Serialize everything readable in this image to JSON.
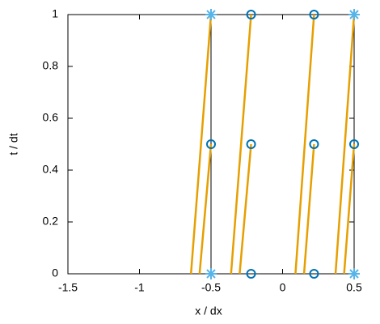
{
  "chart_data": {
    "type": "line",
    "xlabel": "x / dx",
    "ylabel": "t / dt",
    "xlim": [
      -1.5,
      0.5
    ],
    "ylim": [
      0,
      1
    ],
    "xticks": [
      -1.5,
      -1,
      -0.5,
      0,
      0.5
    ],
    "yticks": [
      0,
      0.2,
      0.4,
      0.6,
      0.8,
      1
    ],
    "grid": false,
    "series": [
      {
        "color": "#000000",
        "x": [
          -0.5,
          -0.5
        ],
        "values": [
          0,
          1
        ]
      },
      {
        "color": "#e69f00",
        "x": [
          -0.64,
          -0.5,
          null,
          -0.58,
          -0.5,
          null,
          -0.36,
          -0.22,
          null,
          -0.3,
          -0.22,
          null,
          0.09,
          0.22,
          null,
          0.15,
          0.22,
          null,
          0.37,
          0.5,
          null,
          0.43,
          0.5
        ],
        "values": [
          0,
          1,
          null,
          0,
          0.5,
          null,
          0,
          1,
          null,
          0,
          0.5,
          null,
          0,
          1,
          null,
          0,
          0.5,
          null,
          0,
          1,
          null,
          0,
          0.5
        ]
      },
      {
        "color": "#0072b2",
        "marker": "circle",
        "x": [
          -0.22,
          -0.22,
          -0.22,
          0.22,
          0.22,
          0.22,
          -0.5,
          0.5
        ],
        "values": [
          0,
          0.5,
          1,
          0,
          0.5,
          1,
          0.5,
          0.5
        ]
      },
      {
        "color": "#56b4e9",
        "marker": "star",
        "x": [
          -0.5,
          -0.5,
          0.5,
          0.5
        ],
        "values": [
          0,
          1,
          0,
          1
        ]
      }
    ]
  }
}
